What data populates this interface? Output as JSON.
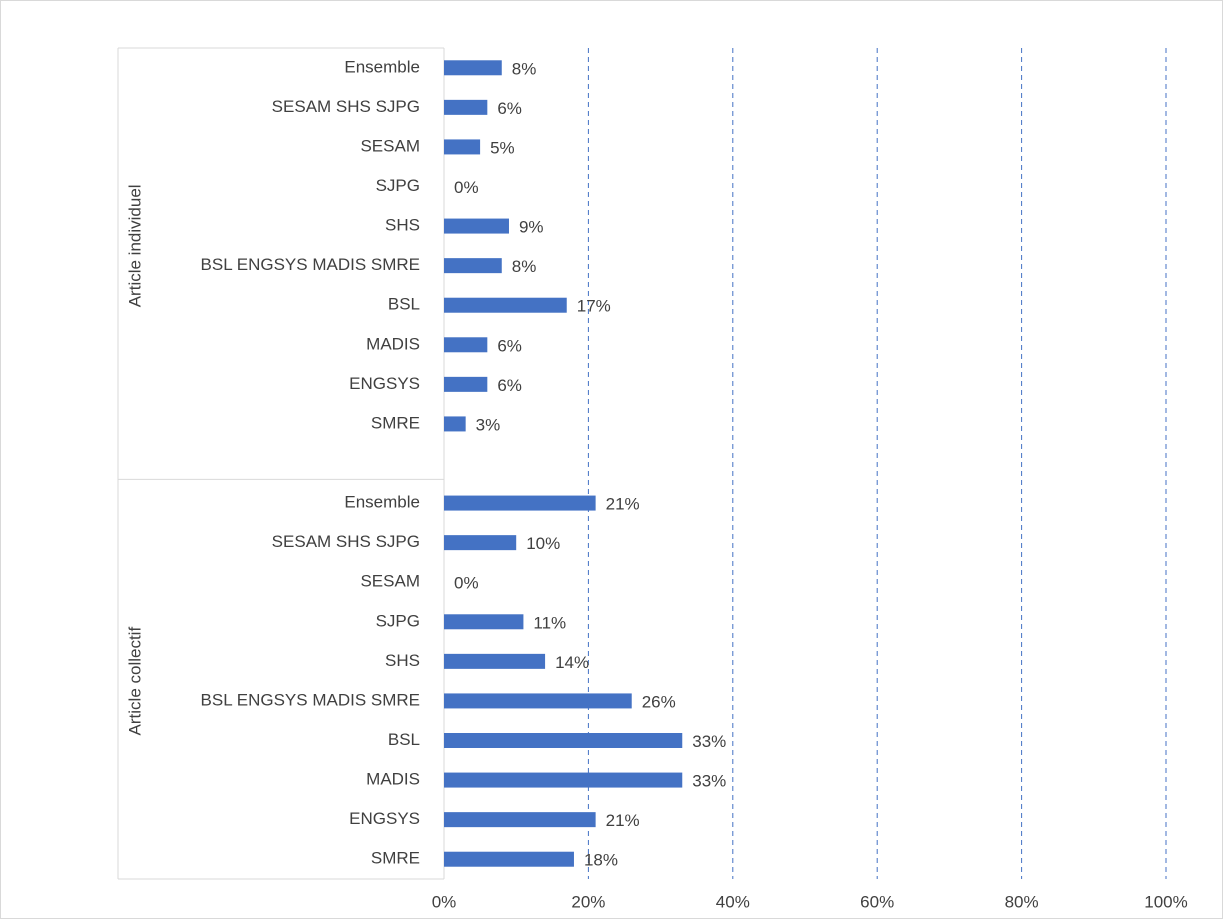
{
  "chart_data": {
    "type": "bar",
    "orientation": "horizontal",
    "color": "#4472c4",
    "groups": [
      {
        "name": "Article individuel",
        "categories": [
          "Ensemble",
          "SESAM SHS SJPG",
          "SESAM",
          "SJPG",
          "SHS",
          "BSL ENGSYS MADIS SMRE",
          "BSL",
          "MADIS",
          "ENGSYS",
          "SMRE"
        ],
        "values": [
          8,
          6,
          5,
          0,
          9,
          8,
          17,
          6,
          6,
          3
        ],
        "value_labels": [
          "8%",
          "6%",
          "5%",
          "0%",
          "9%",
          "8%",
          "17%",
          "6%",
          "6%",
          "3%"
        ]
      },
      {
        "name": "Article collectif",
        "categories": [
          "Ensemble",
          "SESAM SHS SJPG",
          "SESAM",
          "SJPG",
          "SHS",
          "BSL ENGSYS MADIS SMRE",
          "BSL",
          "MADIS",
          "ENGSYS",
          "SMRE"
        ],
        "values": [
          21,
          10,
          0,
          11,
          14,
          26,
          33,
          33,
          21,
          18
        ],
        "value_labels": [
          "21%",
          "10%",
          "0%",
          "11%",
          "14%",
          "26%",
          "33%",
          "33%",
          "21%",
          "18%"
        ]
      }
    ],
    "xlim": [
      0,
      100
    ],
    "xticks": [
      {
        "value": 0,
        "label": "0%"
      },
      {
        "value": 20,
        "label": "20%"
      },
      {
        "value": 40,
        "label": "40%"
      },
      {
        "value": 60,
        "label": "60%"
      },
      {
        "value": 80,
        "label": "80%"
      },
      {
        "value": 100,
        "label": "100%"
      }
    ],
    "grid": true
  }
}
